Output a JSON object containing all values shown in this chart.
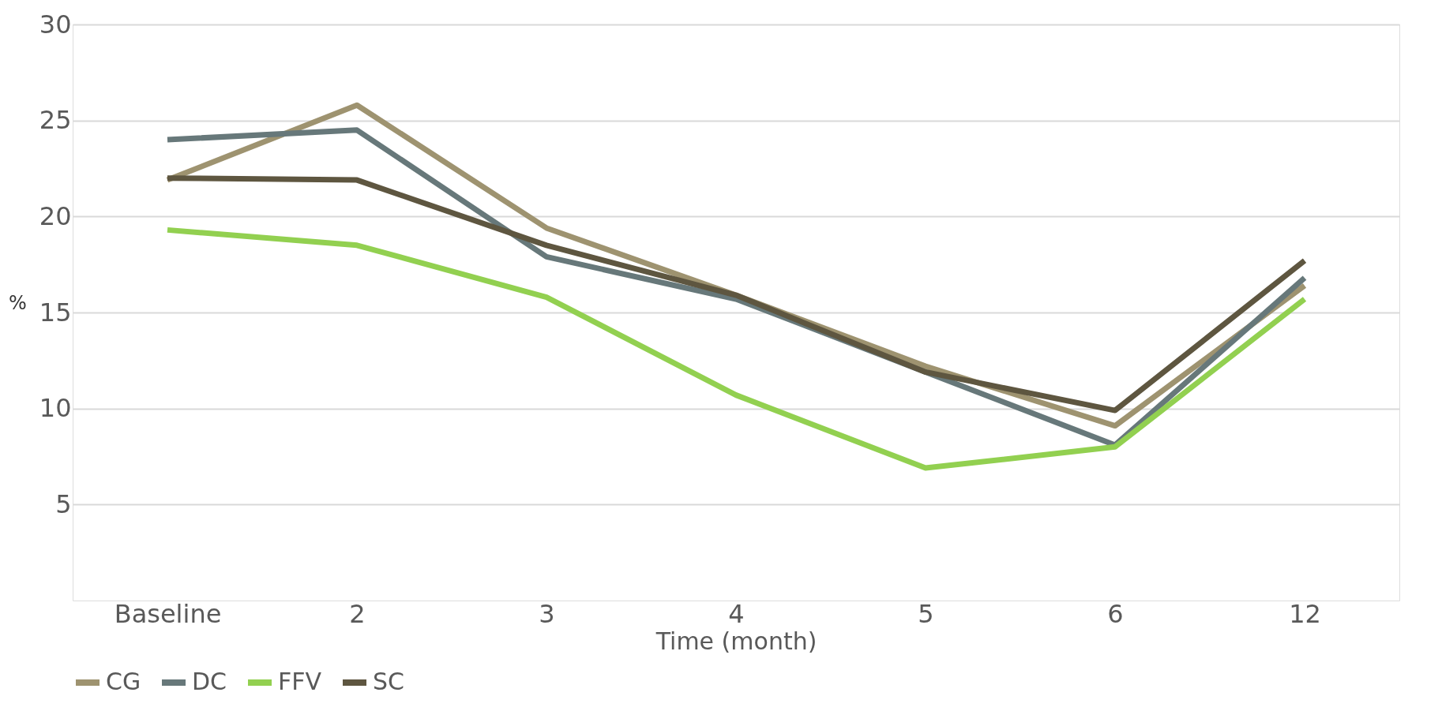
{
  "chart_data": {
    "type": "line",
    "xlabel": "Time (month)",
    "ylabel": "%",
    "categories": [
      "Baseline",
      "2",
      "3",
      "4",
      "5",
      "6",
      "12"
    ],
    "series": [
      {
        "name": "CG",
        "color": "#9e9370",
        "values": [
          21.9,
          25.8,
          19.4,
          15.9,
          12.2,
          9.1,
          16.4
        ]
      },
      {
        "name": "DC",
        "color": "#67787a",
        "values": [
          24.0,
          24.5,
          17.9,
          15.7,
          11.9,
          8.1,
          16.8
        ]
      },
      {
        "name": "FFV",
        "color": "#92d050",
        "values": [
          19.3,
          18.5,
          15.8,
          10.7,
          6.9,
          8.0,
          15.7
        ]
      },
      {
        "name": "SC",
        "color": "#5e5640",
        "values": [
          22.0,
          21.9,
          18.5,
          15.9,
          11.9,
          9.9,
          17.7
        ]
      }
    ],
    "ylim": [
      0,
      30
    ],
    "yticks": [
      5,
      10,
      15,
      20,
      25,
      30
    ],
    "grid": "y",
    "legend": "bottom",
    "marker": "none",
    "line_style": "solid"
  }
}
